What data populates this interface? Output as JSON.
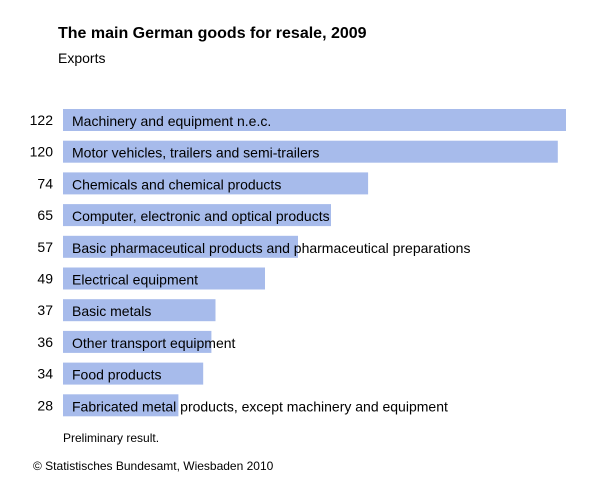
{
  "chart_data": {
    "type": "bar",
    "orientation": "horizontal",
    "title": "The main German goods for resale, 2009",
    "subtitle": "Exports",
    "categories": [
      "Machinery and equipment n.e.c.",
      "Motor vehicles, trailers and semi-trailers",
      "Chemicals and chemical products",
      "Computer, electronic and optical products",
      "Basic pharmaceutical products and pharmaceutical preparations",
      "Electrical equipment",
      "Basic metals",
      "Other transport equipment",
      "Food products",
      "Fabricated metal products, except machinery and equipment"
    ],
    "values": [
      122,
      120,
      74,
      65,
      57,
      49,
      37,
      36,
      34,
      28
    ],
    "bar_color": "#a7bbeb",
    "xlim": [
      0,
      122
    ],
    "grid": false,
    "legend": "none"
  },
  "footer": {
    "note": "Preliminary result.",
    "source": "© Statistisches Bundesamt, Wiesbaden 2010"
  }
}
